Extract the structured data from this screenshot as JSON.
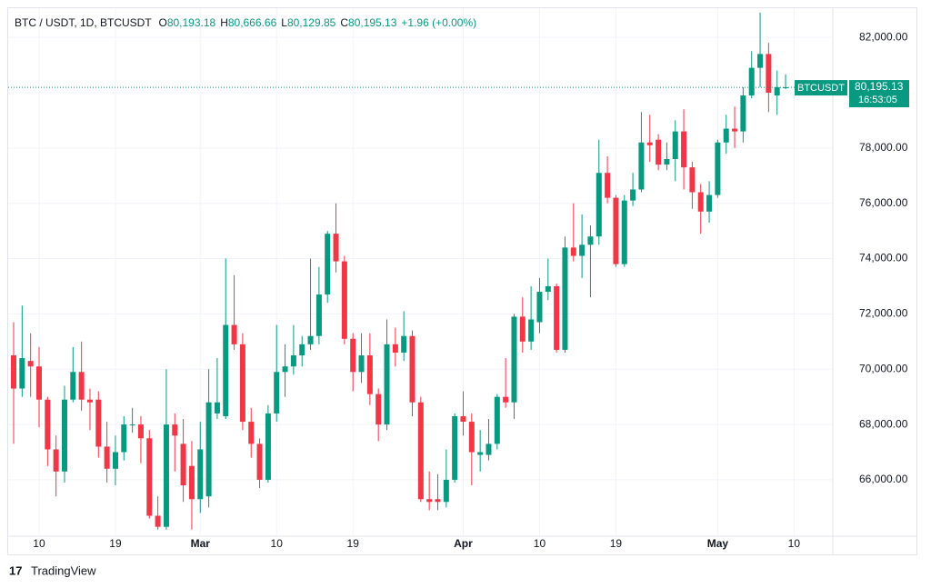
{
  "chart_data": {
    "type": "candlestick",
    "header": {
      "symbol": "BTC / USDT, 1D, BTCUSDT",
      "ohlc": [
        {
          "key": "O",
          "value": "80,193.18"
        },
        {
          "key": "H",
          "value": "80,666.66"
        },
        {
          "key": "L",
          "value": "80,129.85"
        },
        {
          "key": "C",
          "value": "80,195.13"
        }
      ],
      "change": "+1.96 (+0.00%)"
    },
    "open": [
      70500,
      69300,
      70300,
      70100,
      68900,
      67100,
      66300,
      68900,
      69900,
      68900,
      68900,
      67200,
      66400,
      67000,
      68000,
      68000,
      67500,
      64700,
      64300,
      68000,
      67300,
      66500,
      65300,
      65400,
      68400,
      68300,
      71600,
      70900,
      68100,
      67300,
      66000,
      68400,
      69900,
      70100,
      70500,
      70900,
      71200,
      72700,
      74900,
      73900,
      71100,
      69900,
      70500,
      69100,
      68000,
      70900,
      70600,
      71200,
      68800,
      65300,
      65300,
      65200,
      66000,
      68300,
      68100,
      66900,
      66900,
      67300,
      69000,
      68800,
      71900,
      71000,
      71700,
      72800,
      73000,
      70700,
      74400,
      74100,
      74500,
      74800,
      77100,
      76200,
      73800,
      76100,
      76500,
      78200,
      78300,
      77400,
      77600,
      78600,
      77300,
      76400,
      75700,
      76300,
      78200,
      78700,
      78600,
      79900,
      80900,
      81400,
      79900,
      80193.18
    ],
    "high": [
      71700,
      72300,
      71300,
      70800,
      69000,
      67600,
      69400,
      70800,
      71000,
      69300,
      69200,
      68100,
      67600,
      68300,
      68600,
      68300,
      67800,
      65400,
      70000,
      68400,
      68200,
      67400,
      68100,
      70000,
      70400,
      74000,
      73400,
      71300,
      68600,
      67500,
      68700,
      71600,
      70900,
      71600,
      71200,
      74000,
      73700,
      75000,
      76000,
      74100,
      71300,
      71300,
      71300,
      69300,
      71800,
      71500,
      72100,
      71400,
      69000,
      66300,
      66200,
      67100,
      68400,
      69200,
      68400,
      67800,
      68200,
      69100,
      70400,
      72000,
      72600,
      73000,
      73300,
      74000,
      73100,
      74800,
      76000,
      75600,
      75200,
      78300,
      77700,
      76300,
      76300,
      77100,
      79300,
      79200,
      78500,
      78200,
      79000,
      79400,
      77500,
      76700,
      76800,
      78300,
      79200,
      79500,
      80200,
      81500,
      82900,
      81800,
      80800,
      80666.66
    ],
    "low": [
      67300,
      69000,
      69000,
      67900,
      66500,
      65400,
      65900,
      68800,
      68500,
      67800,
      66800,
      65900,
      65800,
      66700,
      67700,
      66600,
      64600,
      64200,
      64200,
      66300,
      65200,
      64200,
      64800,
      65000,
      68200,
      68200,
      70700,
      67800,
      66800,
      65700,
      65900,
      68100,
      69000,
      69800,
      70100,
      70700,
      70900,
      72400,
      73500,
      70900,
      69200,
      69500,
      68700,
      67400,
      67800,
      70100,
      70300,
      68300,
      65200,
      64900,
      64900,
      65000,
      65900,
      67600,
      65800,
      66300,
      66700,
      67100,
      68600,
      68200,
      70600,
      70700,
      71300,
      72500,
      70600,
      70600,
      73900,
      73300,
      72600,
      74500,
      76000,
      73700,
      73700,
      75900,
      76400,
      77500,
      77200,
      77200,
      76800,
      76500,
      75800,
      74900,
      75300,
      76200,
      77800,
      78000,
      78200,
      79800,
      80200,
      79300,
      79200,
      80129.85
    ],
    "close": [
      69300,
      70400,
      70100,
      68900,
      67100,
      66300,
      68900,
      69900,
      68900,
      68800,
      67200,
      66400,
      67000,
      68000,
      68000,
      67500,
      64700,
      64300,
      68000,
      67600,
      65800,
      65300,
      67100,
      68800,
      68800,
      71600,
      70900,
      68100,
      67300,
      66000,
      68400,
      69900,
      70100,
      70500,
      70900,
      71200,
      72700,
      74900,
      73900,
      71100,
      69900,
      70500,
      69100,
      68000,
      70900,
      70600,
      71200,
      68800,
      65300,
      65200,
      65200,
      66000,
      68300,
      68100,
      67000,
      67000,
      67300,
      69000,
      68800,
      71900,
      71000,
      71800,
      72800,
      73000,
      70700,
      74400,
      74100,
      74500,
      74800,
      77100,
      76200,
      73800,
      76100,
      76500,
      78200,
      78100,
      77400,
      77600,
      78600,
      77300,
      76400,
      75700,
      76300,
      78200,
      78700,
      78600,
      79900,
      80900,
      81400,
      80000,
      80200,
      80195.13
    ],
    "up_color": "#089981",
    "down_color": "#f23645",
    "xticks": [
      {
        "value": 3,
        "label": "10"
      },
      {
        "value": 12,
        "label": "19"
      },
      {
        "value": 22,
        "label": "Mar"
      },
      {
        "value": 31,
        "label": "10"
      },
      {
        "value": 40,
        "label": "19"
      },
      {
        "value": 53,
        "label": "Apr"
      },
      {
        "value": 62,
        "label": "10"
      },
      {
        "value": 71,
        "label": "19"
      },
      {
        "value": 83,
        "label": "May"
      },
      {
        "value": 92,
        "label": "10"
      }
    ],
    "ylim": [
      63960,
      83090
    ],
    "yticks": [
      {
        "value": 66000,
        "label": "66,000.00"
      },
      {
        "value": 68000,
        "label": "68,000.00"
      },
      {
        "value": 70000,
        "label": "70,000.00"
      },
      {
        "value": 72000,
        "label": "72,000.00"
      },
      {
        "value": 74000,
        "label": "74,000.00"
      },
      {
        "value": 76000,
        "label": "76,000.00"
      },
      {
        "value": 78000,
        "label": "78,000.00"
      },
      {
        "value": 80000,
        "label": "80,000.00"
      },
      {
        "value": 82000,
        "label": "82,000.00"
      }
    ],
    "grid": true,
    "last_price": {
      "symbol": "BTCUSDT",
      "value": 80195.13,
      "label": "80,195.13",
      "countdown": "16:53:05"
    },
    "brand": "TradingView"
  }
}
